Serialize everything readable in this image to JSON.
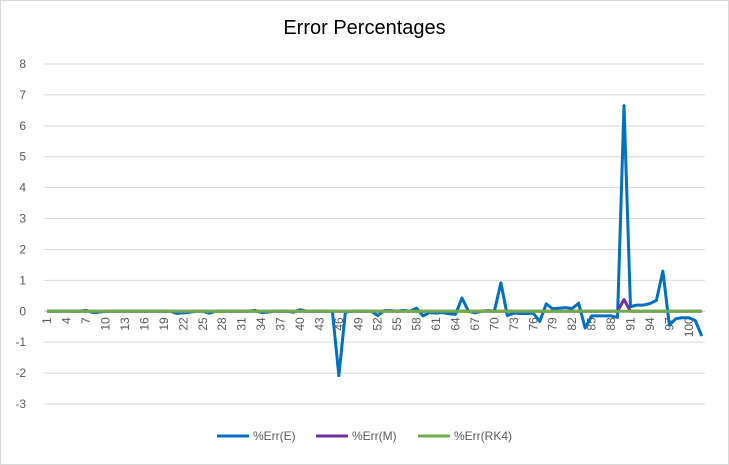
{
  "chart_data": {
    "type": "line",
    "title": "Error Percentages",
    "xlabel": "",
    "ylabel": "",
    "ylim": [
      -3,
      8
    ],
    "yticks": [
      -3,
      -2,
      -1,
      0,
      1,
      2,
      3,
      4,
      5,
      6,
      7,
      8
    ],
    "grid": true,
    "legend_position": "bottom",
    "x": [
      1,
      2,
      3,
      4,
      5,
      6,
      7,
      8,
      9,
      10,
      11,
      12,
      13,
      14,
      15,
      16,
      17,
      18,
      19,
      20,
      21,
      22,
      23,
      24,
      25,
      26,
      27,
      28,
      29,
      30,
      31,
      32,
      33,
      34,
      35,
      36,
      37,
      38,
      39,
      40,
      41,
      42,
      43,
      44,
      45,
      46,
      47,
      48,
      49,
      50,
      51,
      52,
      53,
      54,
      55,
      56,
      57,
      58,
      59,
      60,
      61,
      62,
      63,
      64,
      65,
      66,
      67,
      68,
      69,
      70,
      71,
      72,
      73,
      74,
      75,
      76,
      77,
      78,
      79,
      80,
      81,
      82,
      83,
      84,
      85,
      86,
      87,
      88,
      89,
      90,
      91,
      92,
      93,
      94,
      95,
      96,
      97,
      98,
      99,
      100,
      101,
      102
    ],
    "xtick_labels": [
      "1",
      "4",
      "7",
      "10",
      "13",
      "16",
      "19",
      "22",
      "25",
      "28",
      "31",
      "34",
      "37",
      "40",
      "43",
      "46",
      "49",
      "52",
      "55",
      "58",
      "61",
      "64",
      "67",
      "70",
      "73",
      "76",
      "79",
      "82",
      "85",
      "88",
      "91",
      "94",
      "97",
      "100"
    ],
    "series": [
      {
        "name": "%Err(E)",
        "color": "#0070C0",
        "values": [
          0,
          0,
          0,
          0,
          0,
          0,
          0.03,
          -0.04,
          -0.03,
          0,
          0,
          0,
          0,
          0,
          0,
          0,
          0,
          0,
          0,
          0,
          -0.07,
          -0.05,
          -0.03,
          0,
          0,
          -0.06,
          0,
          0,
          0,
          0,
          0,
          0,
          0.03,
          -0.04,
          -0.03,
          0,
          0,
          0,
          -0.03,
          0.05,
          0,
          0,
          0,
          0,
          0,
          -2.08,
          -0.03,
          0,
          0,
          0,
          0,
          -0.14,
          0.02,
          0.02,
          0,
          0.03,
          0,
          0.1,
          -0.15,
          -0.04,
          -0.06,
          -0.04,
          -0.08,
          -0.1,
          0.43,
          0,
          -0.05,
          0,
          0.02,
          0,
          0.92,
          -0.14,
          -0.06,
          -0.07,
          -0.07,
          -0.06,
          -0.33,
          0.24,
          0.08,
          0.1,
          0.12,
          0.09,
          0.26,
          -0.54,
          -0.15,
          -0.15,
          -0.15,
          -0.15,
          -0.2,
          6.65,
          0.15,
          0.2,
          0.2,
          0.25,
          0.35,
          1.3,
          -0.45,
          -0.24,
          -0.21,
          -0.21,
          -0.3,
          -0.8
        ]
      },
      {
        "name": "%Err(M)",
        "color": "#7030A0",
        "values": [
          0,
          0,
          0,
          0,
          0,
          0,
          0,
          0,
          0,
          0,
          0,
          0,
          0,
          0,
          0,
          0,
          0,
          0,
          0,
          0,
          0,
          0,
          0,
          0,
          0,
          0,
          0,
          0,
          0,
          0,
          0,
          0,
          0,
          0,
          0,
          0,
          0,
          0,
          0,
          0,
          0,
          0,
          0,
          0,
          0,
          0,
          0,
          0,
          0,
          0,
          0,
          0,
          0,
          0,
          0,
          0,
          0,
          0,
          0,
          0,
          0,
          0,
          0,
          0,
          0,
          0,
          0,
          0,
          0,
          0,
          0,
          0,
          0,
          0,
          0,
          0,
          0,
          0,
          0,
          0,
          0,
          0,
          0,
          0,
          0,
          0,
          0,
          0,
          0,
          0.38,
          0,
          0,
          0,
          0,
          0,
          0,
          0,
          0,
          0,
          0,
          0,
          0
        ]
      },
      {
        "name": "%Err(RK4)",
        "color": "#70AD47",
        "values": [
          0,
          0,
          0,
          0,
          0,
          0,
          0,
          0,
          0,
          0,
          0,
          0,
          0,
          0,
          0,
          0,
          0,
          0,
          0,
          0,
          0,
          0,
          0,
          0,
          0,
          0,
          0,
          0,
          0,
          0,
          0,
          0,
          0,
          0,
          0,
          0,
          0,
          0,
          0,
          0,
          0,
          0,
          0,
          0,
          0,
          0,
          0,
          0,
          0,
          0,
          0,
          0,
          0,
          0,
          0,
          0,
          0,
          0,
          0,
          0,
          0,
          0,
          0,
          0,
          0,
          0,
          0,
          0,
          0,
          0,
          0,
          0,
          0,
          0,
          0,
          0,
          0,
          0,
          0,
          0,
          0,
          0,
          0,
          0,
          0,
          0,
          0,
          0,
          0,
          0,
          0,
          0,
          0,
          0,
          0,
          0,
          0,
          0,
          0,
          0,
          0,
          0
        ]
      }
    ]
  }
}
